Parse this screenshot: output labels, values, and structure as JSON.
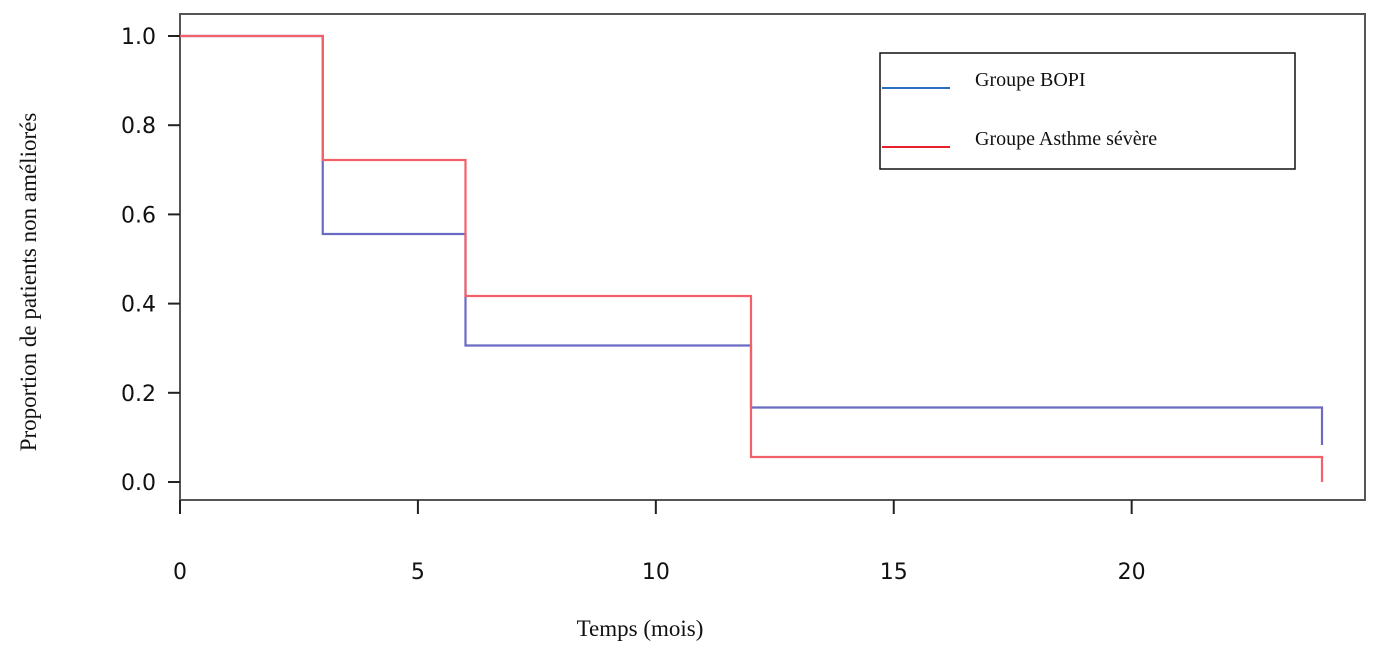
{
  "chart_data": {
    "type": "line",
    "step": true,
    "xlabel": "Temps (mois)",
    "ylabel": "Proportion de patients non  améliorés",
    "xlim": [
      0,
      24
    ],
    "ylim": [
      0,
      1
    ],
    "x_ticks": [
      0,
      5,
      10,
      15,
      20
    ],
    "x_tick_labels": [
      "0",
      "5",
      "10",
      "15",
      "20"
    ],
    "y_ticks": [
      0,
      0.2,
      0.4,
      0.6,
      0.8,
      1.0
    ],
    "y_tick_labels": [
      "0.0",
      "0.2",
      "0.4",
      "0.6",
      "0.8",
      "1.0"
    ],
    "grid": false,
    "legend_position": "top-right",
    "series": [
      {
        "name": "Groupe BOPI",
        "color": "#6b6bc4",
        "legend_color": "#2b6fc4",
        "x": [
          0,
          3,
          6,
          12,
          24
        ],
        "y": [
          1.0,
          0.556,
          0.306,
          0.167,
          0.083
        ]
      },
      {
        "name": "Groupe Asthme sévère",
        "color": "#f2606a",
        "legend_color": "#e8202a",
        "x": [
          0,
          3,
          6,
          12,
          24
        ],
        "y": [
          1.0,
          0.722,
          0.417,
          0.056,
          0.0
        ]
      }
    ]
  }
}
